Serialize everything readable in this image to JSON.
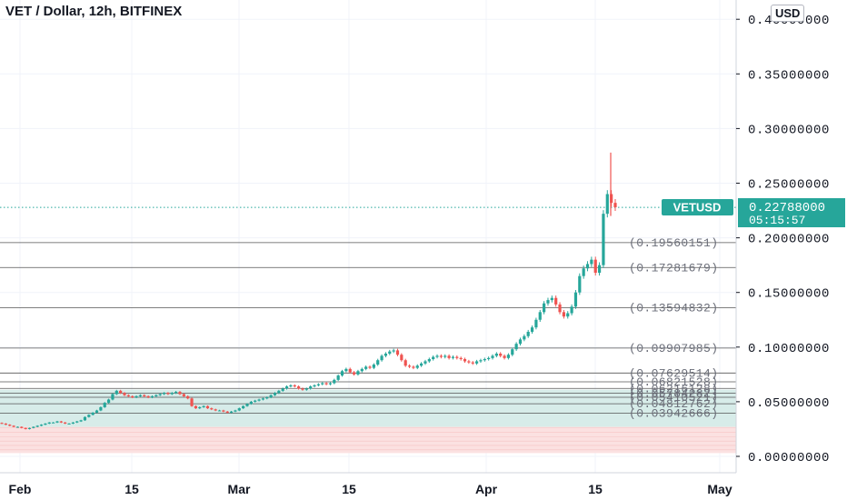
{
  "header": {
    "title": "VET / Dollar, 12h, BITFINEX",
    "currency": "USD"
  },
  "price_tag": {
    "symbol": "VETUSD",
    "price": "0.22788000",
    "countdown": "05:15:57"
  },
  "colors": {
    "up": "#26a69a",
    "down": "#ef5350",
    "line": "#131722",
    "price_line": "#26a69a"
  },
  "chart_data": {
    "type": "candlestick",
    "title": "VET / Dollar, 12h, BITFINEX",
    "y_ticks": [
      "0.00000000",
      "0.05000000",
      "0.10000000",
      "0.15000000",
      "0.20000000",
      "0.25000000",
      "0.30000000",
      "0.35000000",
      "0.40000000"
    ],
    "x_ticks": [
      "Feb",
      "15",
      "Mar",
      "15",
      "Apr",
      "15",
      "May"
    ],
    "ylim": [
      0,
      0.41
    ],
    "last_price": 0.22788,
    "levels": [
      {
        "value": 0.19560151,
        "label": "(0.19560151)"
      },
      {
        "value": 0.17281679,
        "label": "(0.17281679)"
      },
      {
        "value": 0.13594832,
        "label": "(0.13594832)"
      },
      {
        "value": 0.09907985,
        "label": "(0.09907985)"
      },
      {
        "value": 0.07629514,
        "label": "(0.07629514)"
      },
      {
        "value": 0.06821528,
        "label": "(0.06821528)"
      },
      {
        "value": 0.06216128,
        "label": "(0.06216128)"
      },
      {
        "value": 0.05784282,
        "label": "(0.05784282)"
      },
      {
        "value": 0.05410521,
        "label": "(0.05410521)"
      },
      {
        "value": 0.04812762,
        "label": "(0.04812762)"
      },
      {
        "value": 0.03942666,
        "label": "(0.03942666)"
      }
    ],
    "zones": [
      {
        "from": 0.027,
        "to": 0.061,
        "color": "#d7ece9"
      },
      {
        "from": 0.003,
        "to": 0.027,
        "color": "#fbe1e1"
      }
    ],
    "close_series": [
      0.03,
      0.029,
      0.028,
      0.027,
      0.027,
      0.026,
      0.025,
      0.026,
      0.027,
      0.028,
      0.029,
      0.03,
      0.031,
      0.031,
      0.032,
      0.031,
      0.03,
      0.03,
      0.031,
      0.032,
      0.033,
      0.036,
      0.038,
      0.04,
      0.042,
      0.045,
      0.049,
      0.052,
      0.057,
      0.06,
      0.058,
      0.056,
      0.055,
      0.054,
      0.055,
      0.056,
      0.055,
      0.054,
      0.055,
      0.056,
      0.057,
      0.058,
      0.057,
      0.058,
      0.059,
      0.057,
      0.055,
      0.053,
      0.046,
      0.044,
      0.045,
      0.046,
      0.044,
      0.043,
      0.042,
      0.042,
      0.041,
      0.04,
      0.041,
      0.042,
      0.044,
      0.046,
      0.048,
      0.05,
      0.051,
      0.052,
      0.053,
      0.054,
      0.056,
      0.058,
      0.06,
      0.062,
      0.064,
      0.065,
      0.064,
      0.062,
      0.061,
      0.062,
      0.064,
      0.065,
      0.066,
      0.067,
      0.066,
      0.067,
      0.07,
      0.074,
      0.078,
      0.08,
      0.077,
      0.075,
      0.078,
      0.08,
      0.082,
      0.081,
      0.084,
      0.088,
      0.092,
      0.094,
      0.096,
      0.097,
      0.093,
      0.088,
      0.083,
      0.082,
      0.081,
      0.083,
      0.085,
      0.087,
      0.089,
      0.091,
      0.092,
      0.091,
      0.092,
      0.09,
      0.091,
      0.09,
      0.089,
      0.087,
      0.086,
      0.085,
      0.087,
      0.088,
      0.089,
      0.09,
      0.092,
      0.094,
      0.092,
      0.09,
      0.093,
      0.098,
      0.103,
      0.107,
      0.11,
      0.114,
      0.118,
      0.125,
      0.132,
      0.14,
      0.143,
      0.145,
      0.139,
      0.132,
      0.128,
      0.131,
      0.137,
      0.15,
      0.165,
      0.172,
      0.176,
      0.18,
      0.168,
      0.175,
      0.222,
      0.24,
      0.232,
      0.228
    ]
  }
}
